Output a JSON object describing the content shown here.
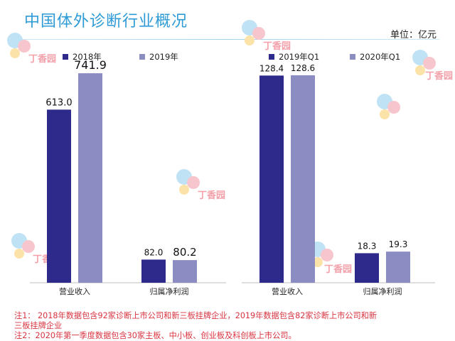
{
  "title": "中国体外诊断行业概况",
  "unit": "单位：亿元",
  "watermark_text": "丁香园",
  "colors": {
    "title": "#2e9bd6",
    "dark_bar": "#2e2a8c",
    "light_bar": "#8b8cc2",
    "note": "#d9333f"
  },
  "notes": [
    "注1： 2018年数据包含92家诊断上市公司和新三板挂牌企业，2019年数据包含82家诊断上市公司和新",
    "三板挂牌企业",
    "注2：2020年第一季度数据包含30家主板、中小板、创业板及科创板上市公司。"
  ],
  "chart_data": [
    {
      "type": "bar",
      "categories": [
        "营业收入",
        "归属净利润"
      ],
      "series": [
        {
          "name": "2018年",
          "values": [
            613.0,
            82.0
          ],
          "color": "#2e2a8c",
          "labels": [
            "613.0",
            "82.0"
          ]
        },
        {
          "name": "2019年",
          "values": [
            741.9,
            80.2
          ],
          "color": "#8b8cc2",
          "labels": [
            "741.9",
            "80.2"
          ]
        }
      ],
      "ylim": [
        0,
        800
      ],
      "grid": false,
      "legend": "top"
    },
    {
      "type": "bar",
      "categories": [
        "营业收入",
        "归属净利润"
      ],
      "series": [
        {
          "name": "2019年Q1",
          "values": [
            128.4,
            18.3
          ],
          "color": "#2e2a8c",
          "labels": [
            "128.4",
            "18.3"
          ]
        },
        {
          "name": "2020年Q1",
          "values": [
            128.6,
            19.3
          ],
          "color": "#8b8cc2",
          "labels": [
            "128.6",
            "19.3"
          ]
        }
      ],
      "ylim": [
        0,
        140
      ],
      "grid": false,
      "legend": "top"
    }
  ]
}
